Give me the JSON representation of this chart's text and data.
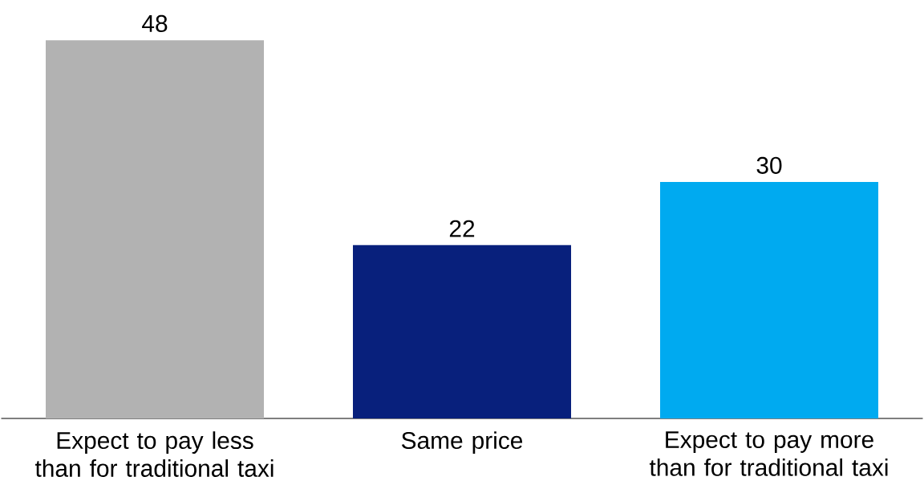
{
  "chart_data": {
    "type": "bar",
    "categories": [
      "Expect to pay less than for traditional taxi",
      "Same price",
      "Expect to pay more than for traditional taxi"
    ],
    "values": [
      48,
      22,
      30
    ],
    "colors": [
      "#b2b2b2",
      "#08207c",
      "#00aaf0"
    ],
    "data_labels": true
  }
}
